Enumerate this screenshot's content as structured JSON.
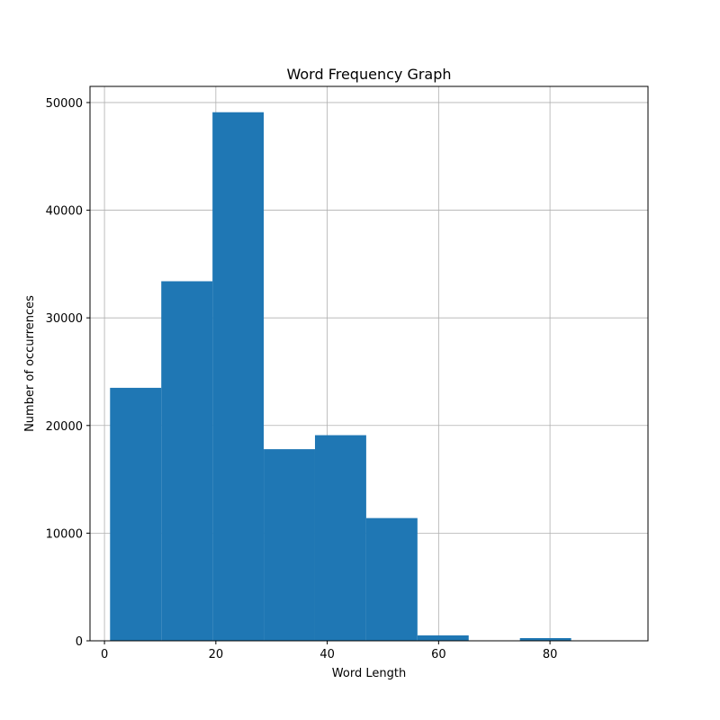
{
  "chart_data": {
    "type": "bar",
    "title": "Word Frequency Graph",
    "xlabel": "Word Length",
    "ylabel": "Number of occurrences",
    "xlim": [
      -2.6,
      97.6
    ],
    "ylim": [
      0,
      51500
    ],
    "x_ticks": [
      0,
      20,
      40,
      60,
      80
    ],
    "y_ticks": [
      0,
      10000,
      20000,
      30000,
      40000,
      50000
    ],
    "grid": true,
    "bar_color": "#1f77b4",
    "bins": [
      {
        "x0": 1.0,
        "x1": 10.2,
        "value": 23500
      },
      {
        "x0": 10.2,
        "x1": 19.4,
        "value": 33400
      },
      {
        "x0": 19.4,
        "x1": 28.6,
        "value": 49100
      },
      {
        "x0": 28.6,
        "x1": 37.8,
        "value": 17800
      },
      {
        "x0": 37.8,
        "x1": 47.0,
        "value": 19100
      },
      {
        "x0": 47.0,
        "x1": 56.2,
        "value": 11400
      },
      {
        "x0": 56.2,
        "x1": 65.4,
        "value": 500
      },
      {
        "x0": 65.4,
        "x1": 74.6,
        "value": 0
      },
      {
        "x0": 74.6,
        "x1": 83.8,
        "value": 250
      },
      {
        "x0": 83.8,
        "x1": 93.0,
        "value": 0
      }
    ]
  }
}
